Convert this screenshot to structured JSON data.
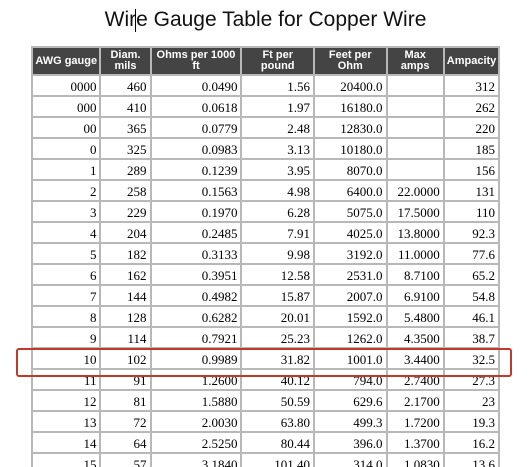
{
  "page": {
    "title": "Wire Gauge Table for Copper Wire"
  },
  "table": {
    "headers": [
      "AWG gauge",
      "Diam. mils",
      "Ohms per 1000 ft",
      "Ft per pound",
      "Feet per Ohm",
      "Max amps",
      "Ampacity"
    ],
    "rows": [
      [
        "0000",
        "460",
        "0.0490",
        "1.56",
        "20400.0",
        "",
        "312"
      ],
      [
        "000",
        "410",
        "0.0618",
        "1.97",
        "16180.0",
        "",
        "262"
      ],
      [
        "00",
        "365",
        "0.0779",
        "2.48",
        "12830.0",
        "",
        "220"
      ],
      [
        "0",
        "325",
        "0.0983",
        "3.13",
        "10180.0",
        "",
        "185"
      ],
      [
        "1",
        "289",
        "0.1239",
        "3.95",
        "8070.0",
        "",
        "156"
      ],
      [
        "2",
        "258",
        "0.1563",
        "4.98",
        "6400.0",
        "22.0000",
        "131"
      ],
      [
        "3",
        "229",
        "0.1970",
        "6.28",
        "5075.0",
        "17.5000",
        "110"
      ],
      [
        "4",
        "204",
        "0.2485",
        "7.91",
        "4025.0",
        "13.8000",
        "92.3"
      ],
      [
        "5",
        "182",
        "0.3133",
        "9.98",
        "3192.0",
        "11.0000",
        "77.6"
      ],
      [
        "6",
        "162",
        "0.3951",
        "12.58",
        "2531.0",
        "8.7100",
        "65.2"
      ],
      [
        "7",
        "144",
        "0.4982",
        "15.87",
        "2007.0",
        "6.9100",
        "54.8"
      ],
      [
        "8",
        "128",
        "0.6282",
        "20.01",
        "1592.0",
        "5.4800",
        "46.1"
      ],
      [
        "9",
        "114",
        "0.7921",
        "25.23",
        "1262.0",
        "4.3500",
        "38.7"
      ],
      [
        "10",
        "102",
        "0.9989",
        "31.82",
        "1001.0",
        "3.4400",
        "32.5"
      ],
      [
        "11",
        "91",
        "1.2600",
        "40.12",
        "794.0",
        "2.7400",
        "27.3"
      ],
      [
        "12",
        "81",
        "1.5880",
        "50.59",
        "629.6",
        "2.1700",
        "23"
      ],
      [
        "13",
        "72",
        "2.0030",
        "63.80",
        "499.3",
        "1.7200",
        "19.3"
      ],
      [
        "14",
        "64",
        "2.5250",
        "80.44",
        "396.0",
        "1.3700",
        "16.2"
      ],
      [
        "15",
        "57",
        "3.1840",
        "101.40",
        "314.0",
        "1.0830",
        "13.6"
      ]
    ]
  },
  "highlight": {
    "row_index": 13,
    "color": "#c0392b"
  },
  "colors": {
    "header_bg": "#444444",
    "header_text": "#ffffff",
    "grid": "#b8b8b8"
  }
}
